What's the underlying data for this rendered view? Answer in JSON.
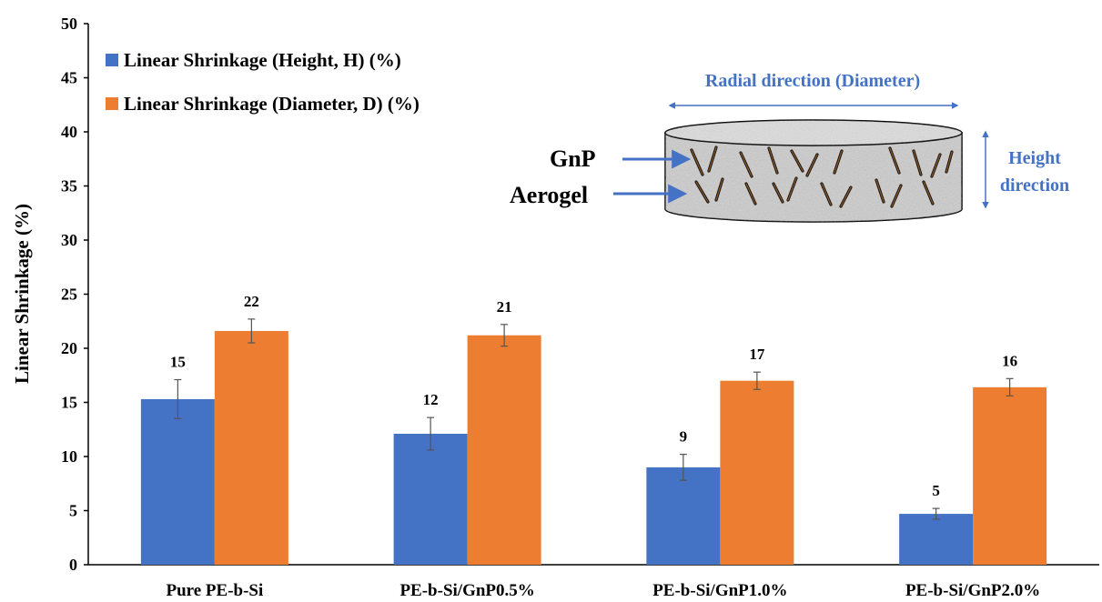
{
  "chart_data": {
    "type": "bar",
    "title": "",
    "xlabel": "",
    "ylabel": "Linear Shrinkage (%)",
    "ylim": [
      0,
      50
    ],
    "yticks": [
      0,
      5,
      10,
      15,
      20,
      25,
      30,
      35,
      40,
      45,
      50
    ],
    "grid": false,
    "legend_position": "top-left",
    "categories": [
      "Pure PE-b-Si",
      "PE-b-Si/GnP0.5%",
      "PE-b-Si/GnP1.0%",
      "PE-b-Si/GnP2.0%"
    ],
    "series": [
      {
        "name": "Linear Shrinkage (Height, H) (%)",
        "color": "#4472C4",
        "values": [
          15.3,
          12.1,
          9.0,
          4.7
        ],
        "errors": [
          1.8,
          1.5,
          1.2,
          0.5
        ],
        "labels": [
          "15",
          "12",
          "9",
          "5"
        ]
      },
      {
        "name": "Linear Shrinkage (Diameter, D) (%)",
        "color": "#ED7D31",
        "values": [
          21.6,
          21.2,
          17.0,
          16.4
        ],
        "errors": [
          1.1,
          1.0,
          0.8,
          0.8
        ],
        "labels": [
          "22",
          "21",
          "17",
          "16"
        ]
      }
    ],
    "inset": {
      "radial_label": "Radial direction (Diameter)",
      "height_label_line1": "Height",
      "height_label_line2": "direction",
      "gnp_label": "GnP",
      "aerogel_label": "Aerogel"
    }
  }
}
